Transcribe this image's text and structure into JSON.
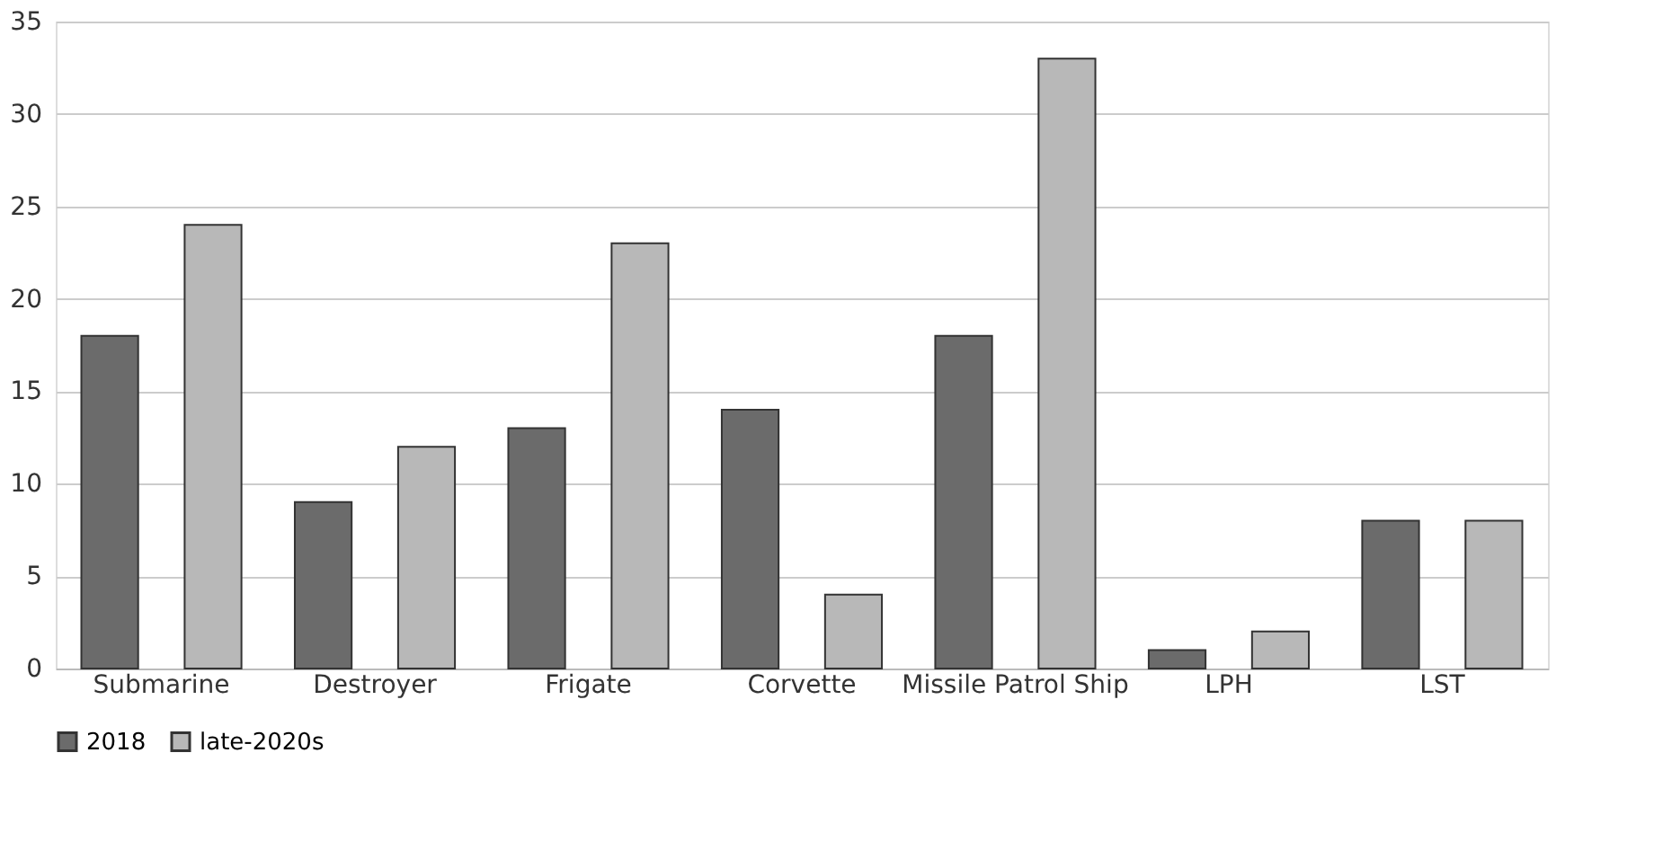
{
  "chart_data": {
    "type": "bar",
    "categories": [
      "Submarine",
      "Destroyer",
      "Frigate",
      "Corvette",
      "Missile Patrol Ship",
      "LPH",
      "LST"
    ],
    "series": [
      {
        "name": "2018",
        "color": "#6b6b6b",
        "values": [
          18,
          9,
          13,
          14,
          18,
          1,
          8
        ]
      },
      {
        "name": "late-2020s",
        "color": "#b8b8b8",
        "values": [
          24,
          12,
          23,
          4,
          33,
          2,
          8
        ]
      }
    ],
    "ylim": [
      0,
      35
    ],
    "yticks": [
      0,
      5,
      10,
      15,
      20,
      25,
      30,
      35
    ],
    "grid": "y",
    "legend": "bottom"
  }
}
